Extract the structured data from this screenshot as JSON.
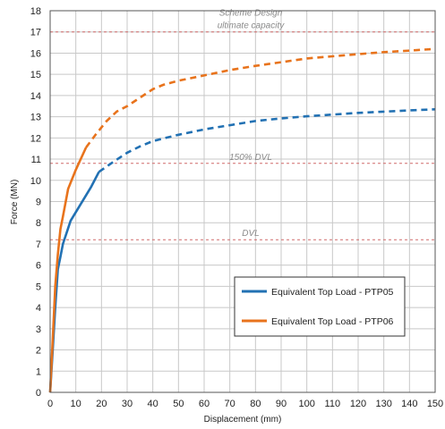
{
  "chart_data": {
    "type": "line",
    "title": "",
    "xlabel": "Displacement (mm)",
    "ylabel": "Force (MN)",
    "xlim": [
      0,
      150
    ],
    "ylim": [
      0,
      18
    ],
    "x_ticks": [
      0,
      10,
      20,
      30,
      40,
      50,
      60,
      70,
      80,
      90,
      100,
      110,
      120,
      130,
      140,
      150
    ],
    "y_ticks": [
      0,
      1,
      2,
      3,
      4,
      5,
      6,
      7,
      8,
      9,
      10,
      11,
      12,
      13,
      14,
      15,
      16,
      17,
      18
    ],
    "grid": true,
    "legend_position": "lower-right",
    "series": [
      {
        "name": "Equivalent Top Load - PTP05",
        "color": "#2271b3",
        "x_solid_end": 19,
        "points": [
          [
            0,
            0
          ],
          [
            1,
            2
          ],
          [
            2,
            4
          ],
          [
            3,
            5.8
          ],
          [
            4,
            6.4
          ],
          [
            5,
            7
          ],
          [
            8,
            8.1
          ],
          [
            12,
            8.9
          ],
          [
            16,
            9.7
          ],
          [
            19,
            10.4
          ],
          [
            25,
            10.9
          ],
          [
            30,
            11.3
          ],
          [
            35,
            11.6
          ],
          [
            40,
            11.85
          ],
          [
            45,
            12.0
          ],
          [
            50,
            12.15
          ],
          [
            60,
            12.4
          ],
          [
            70,
            12.6
          ],
          [
            80,
            12.8
          ],
          [
            90,
            12.92
          ],
          [
            100,
            13.02
          ],
          [
            110,
            13.1
          ],
          [
            120,
            13.18
          ],
          [
            130,
            13.24
          ],
          [
            140,
            13.3
          ],
          [
            150,
            13.35
          ]
        ]
      },
      {
        "name": "Equivalent Top Load - PTP06",
        "color": "#e8731c",
        "x_solid_end": 14,
        "points": [
          [
            0,
            0
          ],
          [
            1,
            2.5
          ],
          [
            2,
            5
          ],
          [
            3,
            6.5
          ],
          [
            4,
            7.7
          ],
          [
            5,
            8.3
          ],
          [
            7,
            9.6
          ],
          [
            10,
            10.5
          ],
          [
            14,
            11.55
          ],
          [
            18,
            12.2
          ],
          [
            22,
            12.8
          ],
          [
            26,
            13.25
          ],
          [
            30,
            13.5
          ],
          [
            35,
            13.9
          ],
          [
            40,
            14.3
          ],
          [
            44,
            14.5
          ],
          [
            50,
            14.7
          ],
          [
            60,
            14.95
          ],
          [
            70,
            15.2
          ],
          [
            80,
            15.4
          ],
          [
            90,
            15.57
          ],
          [
            100,
            15.75
          ],
          [
            110,
            15.85
          ],
          [
            120,
            15.95
          ],
          [
            130,
            16.05
          ],
          [
            140,
            16.12
          ],
          [
            150,
            16.2
          ]
        ]
      }
    ],
    "reference_lines": [
      {
        "label": [
          "Scheme Design",
          "ultimate capacity"
        ],
        "y": 17.0,
        "color": "#d06a6a"
      },
      {
        "label": [
          "150% DVL"
        ],
        "y": 10.8,
        "color": "#d06a6a"
      },
      {
        "label": [
          "DVL"
        ],
        "y": 7.2,
        "color": "#d06a6a"
      }
    ]
  }
}
